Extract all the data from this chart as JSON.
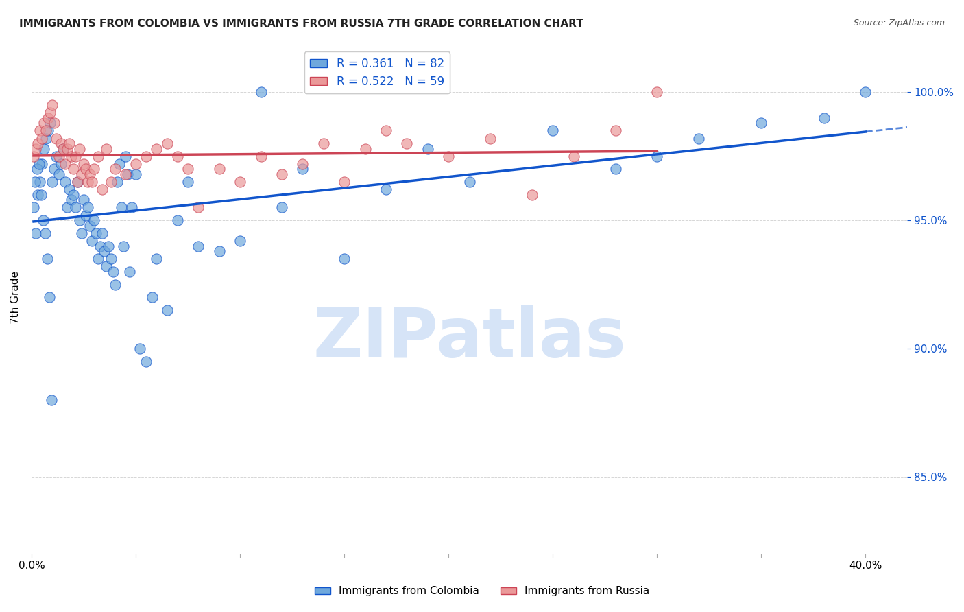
{
  "title": "IMMIGRANTS FROM COLOMBIA VS IMMIGRANTS FROM RUSSIA 7TH GRADE CORRELATION CHART",
  "source": "Source: ZipAtlas.com",
  "ylabel": "7th Grade",
  "colombia_R": 0.361,
  "colombia_N": 82,
  "russia_R": 0.522,
  "russia_N": 59,
  "colombia_color": "#6fa8dc",
  "russia_color": "#ea9999",
  "colombia_line_color": "#1155cc",
  "russia_line_color": "#cc4455",
  "colombia_scatter_x": [
    0.2,
    0.3,
    0.4,
    0.5,
    0.6,
    0.7,
    0.8,
    0.9,
    1.0,
    1.1,
    1.2,
    1.3,
    1.4,
    1.5,
    1.6,
    1.7,
    1.8,
    1.9,
    2.0,
    2.1,
    2.2,
    2.3,
    2.4,
    2.5,
    2.6,
    2.7,
    2.8,
    2.9,
    3.0,
    3.1,
    3.2,
    3.3,
    3.4,
    3.5,
    3.6,
    3.7,
    3.8,
    3.9,
    4.0,
    4.1,
    4.2,
    4.3,
    4.4,
    4.5,
    4.6,
    4.7,
    4.8,
    5.0,
    5.2,
    5.5,
    5.8,
    6.0,
    6.5,
    7.0,
    7.5,
    8.0,
    9.0,
    10.0,
    11.0,
    12.0,
    13.0,
    15.0,
    17.0,
    19.0,
    21.0,
    25.0,
    28.0,
    30.0,
    32.0,
    35.0,
    38.0,
    40.0,
    0.1,
    0.15,
    0.25,
    0.35,
    0.45,
    0.55,
    0.65,
    0.75,
    0.85,
    0.95
  ],
  "colombia_scatter_y": [
    94.5,
    96.0,
    96.5,
    97.2,
    97.8,
    98.2,
    98.5,
    98.8,
    96.5,
    97.0,
    97.5,
    96.8,
    97.2,
    97.8,
    96.5,
    95.5,
    96.2,
    95.8,
    96.0,
    95.5,
    96.5,
    95.0,
    94.5,
    95.8,
    95.2,
    95.5,
    94.8,
    94.2,
    95.0,
    94.5,
    93.5,
    94.0,
    94.5,
    93.8,
    93.2,
    94.0,
    93.5,
    93.0,
    92.5,
    96.5,
    97.2,
    95.5,
    94.0,
    97.5,
    96.8,
    93.0,
    95.5,
    96.8,
    90.0,
    89.5,
    92.0,
    93.5,
    91.5,
    95.0,
    96.5,
    94.0,
    93.8,
    94.2,
    100.0,
    95.5,
    97.0,
    93.5,
    96.2,
    97.8,
    96.5,
    98.5,
    97.0,
    97.5,
    98.2,
    98.8,
    99.0,
    100.0,
    95.5,
    96.5,
    97.0,
    97.2,
    96.0,
    95.0,
    94.5,
    93.5,
    92.0,
    88.0
  ],
  "russia_scatter_x": [
    0.1,
    0.2,
    0.3,
    0.4,
    0.5,
    0.6,
    0.7,
    0.8,
    0.9,
    1.0,
    1.1,
    1.2,
    1.3,
    1.4,
    1.5,
    1.6,
    1.7,
    1.8,
    1.9,
    2.0,
    2.1,
    2.2,
    2.3,
    2.4,
    2.5,
    2.6,
    2.7,
    2.8,
    2.9,
    3.0,
    3.2,
    3.4,
    3.6,
    3.8,
    4.0,
    4.5,
    5.0,
    5.5,
    6.0,
    6.5,
    7.0,
    7.5,
    8.0,
    9.0,
    10.0,
    11.0,
    12.0,
    13.0,
    14.0,
    15.0,
    16.0,
    17.0,
    18.0,
    20.0,
    22.0,
    24.0,
    26.0,
    28.0,
    30.0
  ],
  "russia_scatter_y": [
    97.5,
    97.8,
    98.0,
    98.5,
    98.2,
    98.8,
    98.5,
    99.0,
    99.2,
    99.5,
    98.8,
    98.2,
    97.5,
    98.0,
    97.8,
    97.2,
    97.8,
    98.0,
    97.5,
    97.0,
    97.5,
    96.5,
    97.8,
    96.8,
    97.2,
    97.0,
    96.5,
    96.8,
    96.5,
    97.0,
    97.5,
    96.2,
    97.8,
    96.5,
    97.0,
    96.8,
    97.2,
    97.5,
    97.8,
    98.0,
    97.5,
    97.0,
    95.5,
    97.0,
    96.5,
    97.5,
    96.8,
    97.2,
    98.0,
    96.5,
    97.8,
    98.5,
    98.0,
    97.5,
    98.2,
    96.0,
    97.5,
    98.5,
    100.0
  ],
  "background_color": "#ffffff",
  "grid_color": "#cccccc",
  "watermark_text": "ZIPatlas",
  "watermark_color": "#d6e4f7",
  "figsize": [
    14.06,
    8.92
  ],
  "dpi": 100
}
